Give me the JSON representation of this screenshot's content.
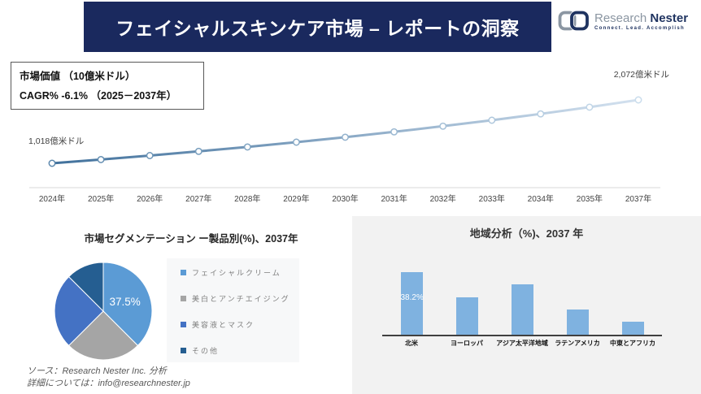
{
  "header": {
    "title": "フェイシャルスキンケア市場 – レポートの洞察",
    "bg_color": "#1a295e"
  },
  "logo": {
    "name_part1": "Research",
    "name_part2": "Nester",
    "tagline": "Connect. Lead. Accomplish"
  },
  "info_box": {
    "line1": "市場価値 （10億米ドル）",
    "line2": "CAGR% -6.1% （2025－2037年）"
  },
  "footer": {
    "source": "ソース：Research Nester Inc. 分析",
    "contact": "詳細については：info@researchnester.jp"
  },
  "chart_data": [
    {
      "type": "line",
      "title": "市場価値 （10億米ドル）",
      "x": [
        "2024年",
        "2025年",
        "2026年",
        "2027年",
        "2028年",
        "2029年",
        "2030年",
        "2031年",
        "2032年",
        "2033年",
        "2034年",
        "2035年",
        "2037年"
      ],
      "values": [
        1018,
        1080,
        1146,
        1216,
        1290,
        1369,
        1452,
        1541,
        1635,
        1734,
        1840,
        1952,
        2072
      ],
      "start_label": "1,018億米ドル",
      "end_label": "2,072億米ドル",
      "line_color_start": "#41719c",
      "line_color_end": "#d3e1ef",
      "ylim": [
        1018,
        2072
      ],
      "grid": false,
      "note": "values between labeled endpoints estimated from 6.1% CAGR"
    },
    {
      "type": "pie",
      "title": "市場セグメンテーション ー製品別(%)、2037年",
      "categories": [
        "フェイシャルクリーム",
        "美白とアンチエイジング",
        "美容液とマスク",
        "その他"
      ],
      "values": [
        37.5,
        25,
        25,
        12.5
      ],
      "colors": [
        "#5b9bd5",
        "#a5a5a5",
        "#4472c4",
        "#255e91"
      ],
      "label": "37.5%",
      "legend_position": "right"
    },
    {
      "type": "bar",
      "title": "地域分析（%)、2037 年",
      "categories": [
        "北米",
        "ヨーロッパ",
        "アジア太平洋地域",
        "ラテンアメリカ",
        "中東とアフリカ"
      ],
      "values": [
        38.2,
        23,
        31,
        15.3,
        7.8
      ],
      "bar_color": "#7fb2e0",
      "label": "38.2%",
      "label_category": "北米",
      "panel_bg": "#f2f2f2",
      "note": "only 北米 value labeled; others estimated from bar heights"
    }
  ]
}
